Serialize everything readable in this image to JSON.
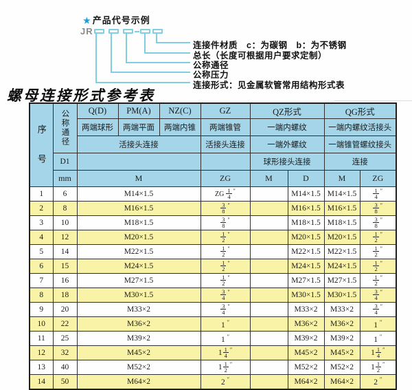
{
  "colors": {
    "header_blue": "#a4d5e9",
    "row_yellow": "#f8f3a6",
    "line_cyan": "#7fcfe3",
    "star_blue": "#1f9cd6",
    "border_dark": "#2e2e2e"
  },
  "diagram": {
    "star": "★",
    "heading": "产品代号示例",
    "code_prefix": "JR",
    "callouts": [
      "连接件材质　c：为碳钢　b：为不锈钢",
      "总长（长度可根据用户要求定制）",
      "公称通径",
      "公称压力",
      "连接形式：见金属软管常用结构形式表"
    ]
  },
  "title": "螺母连接形式参考表",
  "table": {
    "inch_mark": "″",
    "header": {
      "serial": "序号",
      "nominal_diameter": "公称通径",
      "d1": "D1",
      "mm": "mm",
      "groups": [
        "Q(D)",
        "PM(A)",
        "NZ(C)",
        "GZ",
        "QZ形式",
        "QG形式"
      ],
      "row2": [
        "两端球形",
        "两端平面",
        "两端内锥",
        "两端锥管",
        "一端内螺纹",
        "一端内螺纹活接头"
      ],
      "row3": [
        "活接头连接",
        "活接头连接",
        "一端外螺纹",
        "一端锥管螺纹接头"
      ],
      "row4": [
        "球形接头连接",
        "连接"
      ],
      "row5": [
        "M",
        "ZG",
        "M",
        "D",
        "M",
        "ZG"
      ]
    },
    "rows": [
      {
        "no": "1",
        "mm": "6",
        "m": "M14×1.5",
        "gz": {
          "pre": "ZG",
          "n": "1",
          "d": "4"
        },
        "qz_m": "",
        "qz_d": "M14×1.5",
        "qg_m": "M14×1.5",
        "qg_zg": {
          "n": "1",
          "d": "4"
        }
      },
      {
        "no": "2",
        "mm": "8",
        "m": "M16×1.5",
        "gz": {
          "n": "3",
          "d": "8"
        },
        "qz_m": "",
        "qz_d": "M16×1.5",
        "qg_m": "M16×1.5",
        "qg_zg": {
          "n": "3",
          "d": "8"
        }
      },
      {
        "no": "3",
        "mm": "10",
        "m": "M18×1.5",
        "gz": {
          "n": "3",
          "d": "8"
        },
        "qz_m": "",
        "qz_d": "M18×1.5",
        "qg_m": "M18×1.5",
        "qg_zg": {
          "n": "3",
          "d": "8"
        }
      },
      {
        "no": "4",
        "mm": "12",
        "m": "M20×1.5",
        "gz": {
          "n": "1",
          "d": "2"
        },
        "qz_m": "",
        "qz_d": "M20×1.5",
        "qg_m": "M20×1.5",
        "qg_zg": {
          "n": "1",
          "d": "2"
        }
      },
      {
        "no": "5",
        "mm": "14",
        "m": "M22×1.5",
        "gz": {
          "n": "1",
          "d": "2"
        },
        "qz_m": "",
        "qz_d": "M22×1.5",
        "qg_m": "M22×1.5",
        "qg_zg": {
          "n": "1",
          "d": "2"
        }
      },
      {
        "no": "6",
        "mm": "15",
        "m": "M24×1.5",
        "gz": {
          "n": "1",
          "d": "2"
        },
        "qz_m": "",
        "qz_d": "M24×1.5",
        "qg_m": "M24×1.5",
        "qg_zg": {
          "n": "1",
          "d": "2"
        }
      },
      {
        "no": "7",
        "mm": "16",
        "m": "M27×1.5",
        "gz": {
          "n": "1",
          "d": "2"
        },
        "qz_m": "",
        "qz_d": "M27×1.5",
        "qg_m": "M27×1.5",
        "qg_zg": {
          "n": "1",
          "d": "2"
        }
      },
      {
        "no": "8",
        "mm": "18",
        "m": "M30×1.5",
        "gz": {
          "n": "3",
          "d": "4"
        },
        "qz_m": "",
        "qz_d": "M30×1.5",
        "qg_m": "M30×1.5",
        "qg_zg": {
          "n": "3",
          "d": "4"
        }
      },
      {
        "no": "9",
        "mm": "20",
        "m": "M33×2",
        "gz": {
          "n": "3",
          "d": "4"
        },
        "qz_m": "",
        "qz_d": "M33×2",
        "qg_m": "M33×2",
        "qg_zg": {
          "n": "3",
          "d": "4"
        }
      },
      {
        "no": "10",
        "mm": "22",
        "m": "M36×2",
        "gz": {
          "w": "1"
        },
        "qz_m": "",
        "qz_d": "M36×2",
        "qg_m": "M36×2",
        "qg_zg": {
          "w": "1"
        }
      },
      {
        "no": "11",
        "mm": "25",
        "m": "M39×2",
        "gz": {
          "w": "1"
        },
        "qz_m": "",
        "qz_d": "M39×2",
        "qg_m": "M39×2",
        "qg_zg": {
          "w": "1"
        }
      },
      {
        "no": "12",
        "mm": "32",
        "m": "M45×2",
        "gz": {
          "w": "1",
          "n": "1",
          "d": "4"
        },
        "qz_m": "",
        "qz_d": "M45×2",
        "qg_m": "M45×2",
        "qg_zg": {
          "w": "1",
          "n": "1",
          "d": "4"
        }
      },
      {
        "no": "13",
        "mm": "40",
        "m": "M52×2",
        "gz": {
          "w": "1",
          "n": "1",
          "d": "2"
        },
        "qz_m": "",
        "qz_d": "M52×2",
        "qg_m": "M52×2",
        "qg_zg": {
          "w": "1",
          "n": "1",
          "d": "2"
        }
      },
      {
        "no": "14",
        "mm": "50",
        "m": "M64×2",
        "gz": {
          "w": "2"
        },
        "qz_m": "",
        "qz_d": "M64×2",
        "qg_m": "M64×2",
        "qg_zg": {
          "w": "2"
        }
      }
    ]
  }
}
